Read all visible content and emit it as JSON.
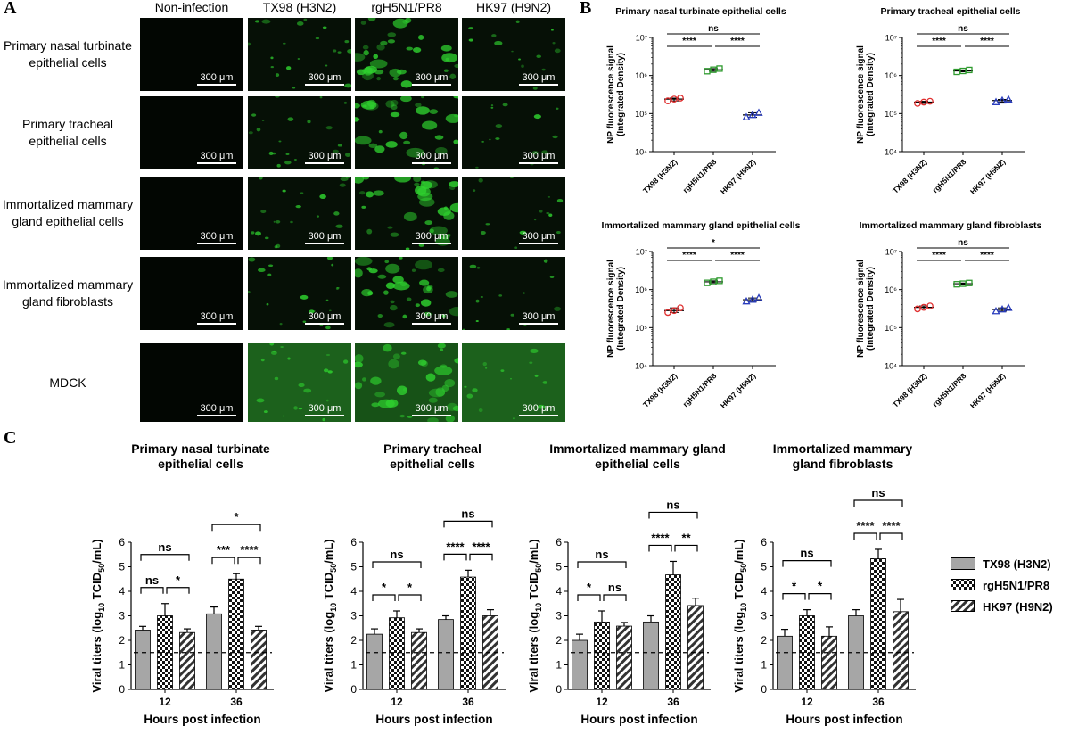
{
  "panels": {
    "a": "A",
    "b": "B",
    "c": "C"
  },
  "panel_a": {
    "columns": [
      "Non-infection",
      "TX98 (H3N2)",
      "rgH5N1/PR8",
      "HK97 (H9N2)"
    ],
    "rows": [
      {
        "label": "Primary nasal turbinate epithelial cells"
      },
      {
        "label": "Primary tracheal epithelial cells"
      },
      {
        "label": "Immortalized mammary gland epithelial cells"
      },
      {
        "label": "Immortalized mammary gland fibroblasts"
      },
      {
        "label": "MDCK"
      }
    ],
    "scale_bar": "300 μm",
    "colors": {
      "fluorescence": "#2fd22f",
      "background": "#061006"
    }
  },
  "chart_data": [
    {
      "type": "scatter",
      "panel": "B",
      "title": "Primary nasal turbinate epithelial cells",
      "categories": [
        "TX98 (H3N2)",
        "rgH5N1/PR8",
        "HK97 (H9N2)"
      ],
      "ylabel": "NP fluorescence signal (Integrated Density)",
      "yscale": "log",
      "ylim": [
        10000,
        10000000
      ],
      "yticks": [
        "10⁴",
        "10⁵",
        "10⁶",
        "10⁷"
      ],
      "series": [
        {
          "category": "TX98 (H3N2)",
          "mean": 240000,
          "points": [
            215000,
            240000,
            255000
          ],
          "marker": "circle",
          "color": "#e03030"
        },
        {
          "category": "rgH5N1/PR8",
          "mean": 1420000,
          "points": [
            1300000,
            1420000,
            1520000
          ],
          "marker": "square",
          "color": "#2e9a2e"
        },
        {
          "category": "HK97 (H9N2)",
          "mean": 92000,
          "points": [
            80000,
            92000,
            105000
          ],
          "marker": "triangle",
          "color": "#2a3dbd"
        }
      ],
      "significance": [
        {
          "from": 0,
          "to": 2,
          "label": "ns"
        },
        {
          "from": 0,
          "to": 1,
          "label": "****"
        },
        {
          "from": 1,
          "to": 2,
          "label": "****"
        }
      ]
    },
    {
      "type": "scatter",
      "panel": "B",
      "title": "Primary tracheal epithelial cells",
      "categories": [
        "TX98 (H3N2)",
        "rgH5N1/PR8",
        "HK97 (H9N2)"
      ],
      "ylabel": "NP fluorescence signal (Integrated Density)",
      "yscale": "log",
      "ylim": [
        10000,
        10000000
      ],
      "yticks": [
        "10⁴",
        "10⁵",
        "10⁶",
        "10⁷"
      ],
      "series": [
        {
          "category": "TX98 (H3N2)",
          "mean": 200000,
          "points": [
            185000,
            200000,
            210000
          ],
          "marker": "circle",
          "color": "#e03030"
        },
        {
          "category": "rgH5N1/PR8",
          "mean": 1320000,
          "points": [
            1250000,
            1320000,
            1400000
          ],
          "marker": "square",
          "color": "#2e9a2e"
        },
        {
          "category": "HK97 (H9N2)",
          "mean": 220000,
          "points": [
            200000,
            220000,
            235000
          ],
          "marker": "triangle",
          "color": "#2a3dbd"
        }
      ],
      "significance": [
        {
          "from": 0,
          "to": 2,
          "label": "ns"
        },
        {
          "from": 0,
          "to": 1,
          "label": "****"
        },
        {
          "from": 1,
          "to": 2,
          "label": "****"
        }
      ]
    },
    {
      "type": "scatter",
      "panel": "B",
      "title": "Immortalized mammary gland epithelial cells",
      "categories": [
        "TX98 (H3N2)",
        "rgH5N1/PR8",
        "HK97 (H9N2)"
      ],
      "ylabel": "NP fluorescence signal (Integrated Density)",
      "yscale": "log",
      "ylim": [
        10000,
        10000000
      ],
      "yticks": [
        "10⁴",
        "10⁵",
        "10⁶",
        "10⁷"
      ],
      "series": [
        {
          "category": "TX98 (H3N2)",
          "mean": 280000,
          "points": [
            250000,
            280000,
            330000
          ],
          "marker": "circle",
          "color": "#e03030"
        },
        {
          "category": "rgH5N1/PR8",
          "mean": 1600000,
          "points": [
            1500000,
            1600000,
            1700000
          ],
          "marker": "square",
          "color": "#2e9a2e"
        },
        {
          "category": "HK97 (H9N2)",
          "mean": 540000,
          "points": [
            490000,
            540000,
            600000
          ],
          "marker": "triangle",
          "color": "#2a3dbd"
        }
      ],
      "significance": [
        {
          "from": 0,
          "to": 2,
          "label": "*"
        },
        {
          "from": 0,
          "to": 1,
          "label": "****"
        },
        {
          "from": 1,
          "to": 2,
          "label": "****"
        }
      ]
    },
    {
      "type": "scatter",
      "panel": "B",
      "title": "Immortalized mammary gland fibroblasts",
      "categories": [
        "TX98 (H3N2)",
        "rgH5N1/PR8",
        "HK97 (H9N2)"
      ],
      "ylabel": "NP fluorescence signal (Integrated Density)",
      "yscale": "log",
      "ylim": [
        10000,
        10000000
      ],
      "yticks": [
        "10⁴",
        "10⁵",
        "10⁶",
        "10⁷"
      ],
      "series": [
        {
          "category": "TX98 (H3N2)",
          "mean": 340000,
          "points": [
            310000,
            340000,
            370000
          ],
          "marker": "circle",
          "color": "#e03030"
        },
        {
          "category": "rgH5N1/PR8",
          "mean": 1430000,
          "points": [
            1380000,
            1430000,
            1490000
          ],
          "marker": "square",
          "color": "#2e9a2e"
        },
        {
          "category": "HK97 (H9N2)",
          "mean": 300000,
          "points": [
            270000,
            300000,
            330000
          ],
          "marker": "triangle",
          "color": "#2a3dbd"
        }
      ],
      "significance": [
        {
          "from": 0,
          "to": 2,
          "label": "ns"
        },
        {
          "from": 0,
          "to": 1,
          "label": "****"
        },
        {
          "from": 1,
          "to": 2,
          "label": "****"
        }
      ]
    },
    {
      "type": "bar",
      "panel": "C",
      "title": "Primary nasal turbinate epithelial cells",
      "categories": [
        "12",
        "36"
      ],
      "xlabel": "Hours post infection",
      "ylabel": "Viral titers (log10 TCID50/mL)",
      "ylim": [
        0,
        6
      ],
      "yticks": [
        "0",
        "1",
        "2",
        "3",
        "4",
        "5",
        "6"
      ],
      "detection_limit": 1.5,
      "series": [
        {
          "name": "TX98 (H3N2)",
          "values": [
            2.42,
            3.08
          ],
          "errors": [
            0.15,
            0.28
          ]
        },
        {
          "name": "rgH5N1/PR8",
          "values": [
            3.0,
            4.5
          ],
          "errors": [
            0.5,
            0.22
          ]
        },
        {
          "name": "HK97 (H9N2)",
          "values": [
            2.32,
            2.42
          ],
          "errors": [
            0.15,
            0.15
          ]
        }
      ],
      "significance": [
        {
          "group": 0,
          "from": 0,
          "to": 2,
          "label": "ns"
        },
        {
          "group": 0,
          "from": 0,
          "to": 1,
          "label": "ns"
        },
        {
          "group": 0,
          "from": 1,
          "to": 2,
          "label": "*"
        },
        {
          "group": 1,
          "from": 0,
          "to": 2,
          "label": "*"
        },
        {
          "group": 1,
          "from": 0,
          "to": 1,
          "label": "***"
        },
        {
          "group": 1,
          "from": 1,
          "to": 2,
          "label": "****"
        }
      ]
    },
    {
      "type": "bar",
      "panel": "C",
      "title": "Primary tracheal epithelial cells",
      "categories": [
        "12",
        "36"
      ],
      "xlabel": "Hours post infection",
      "ylabel": "Viral titers (log10 TCID50/mL)",
      "ylim": [
        0,
        6
      ],
      "yticks": [
        "0",
        "1",
        "2",
        "3",
        "4",
        "5",
        "6"
      ],
      "detection_limit": 1.5,
      "series": [
        {
          "name": "TX98 (H3N2)",
          "values": [
            2.25,
            2.85
          ],
          "errors": [
            0.22,
            0.15
          ]
        },
        {
          "name": "rgH5N1/PR8",
          "values": [
            2.92,
            4.58
          ],
          "errors": [
            0.28,
            0.28
          ]
        },
        {
          "name": "HK97 (H9N2)",
          "values": [
            2.32,
            3.0
          ],
          "errors": [
            0.15,
            0.25
          ]
        }
      ],
      "significance": [
        {
          "group": 0,
          "from": 0,
          "to": 2,
          "label": "ns"
        },
        {
          "group": 0,
          "from": 0,
          "to": 1,
          "label": "*"
        },
        {
          "group": 0,
          "from": 1,
          "to": 2,
          "label": "*"
        },
        {
          "group": 1,
          "from": 0,
          "to": 2,
          "label": "ns"
        },
        {
          "group": 1,
          "from": 0,
          "to": 1,
          "label": "****"
        },
        {
          "group": 1,
          "from": 1,
          "to": 2,
          "label": "****"
        }
      ]
    },
    {
      "type": "bar",
      "panel": "C",
      "title": "Immortalized mammary gland epithelial cells",
      "categories": [
        "12",
        "36"
      ],
      "xlabel": "Hours post infection",
      "ylabel": "Viral titers (log10 TCID50/mL)",
      "ylim": [
        0,
        6
      ],
      "yticks": [
        "0",
        "1",
        "2",
        "3",
        "4",
        "5",
        "6"
      ],
      "detection_limit": 1.5,
      "series": [
        {
          "name": "TX98 (H3N2)",
          "values": [
            2.0,
            2.75
          ],
          "errors": [
            0.25,
            0.25
          ]
        },
        {
          "name": "rgH5N1/PR8",
          "values": [
            2.75,
            4.67
          ],
          "errors": [
            0.45,
            0.55
          ]
        },
        {
          "name": "HK97 (H9N2)",
          "values": [
            2.58,
            3.42
          ],
          "errors": [
            0.15,
            0.3
          ]
        }
      ],
      "significance": [
        {
          "group": 0,
          "from": 0,
          "to": 2,
          "label": "ns"
        },
        {
          "group": 0,
          "from": 0,
          "to": 1,
          "label": "*"
        },
        {
          "group": 0,
          "from": 1,
          "to": 2,
          "label": "ns"
        },
        {
          "group": 1,
          "from": 0,
          "to": 2,
          "label": "ns"
        },
        {
          "group": 1,
          "from": 0,
          "to": 1,
          "label": "****"
        },
        {
          "group": 1,
          "from": 1,
          "to": 2,
          "label": "**"
        }
      ]
    },
    {
      "type": "bar",
      "panel": "C",
      "title": "Immortalized mammary gland fibroblasts",
      "categories": [
        "12",
        "36"
      ],
      "xlabel": "Hours post infection",
      "ylabel": "Viral titers (log10 TCID50/mL)",
      "ylim": [
        0,
        6
      ],
      "yticks": [
        "0",
        "1",
        "2",
        "3",
        "4",
        "5",
        "6"
      ],
      "detection_limit": 1.5,
      "series": [
        {
          "name": "TX98 (H3N2)",
          "values": [
            2.17,
            3.0
          ],
          "errors": [
            0.28,
            0.25
          ]
        },
        {
          "name": "rgH5N1/PR8",
          "values": [
            3.0,
            5.33
          ],
          "errors": [
            0.25,
            0.38
          ]
        },
        {
          "name": "HK97 (H9N2)",
          "values": [
            2.17,
            3.17
          ],
          "errors": [
            0.38,
            0.5
          ]
        }
      ],
      "significance": [
        {
          "group": 0,
          "from": 0,
          "to": 2,
          "label": "ns"
        },
        {
          "group": 0,
          "from": 0,
          "to": 1,
          "label": "*"
        },
        {
          "group": 0,
          "from": 1,
          "to": 2,
          "label": "*"
        },
        {
          "group": 1,
          "from": 0,
          "to": 2,
          "label": "ns"
        },
        {
          "group": 1,
          "from": 0,
          "to": 1,
          "label": "****"
        },
        {
          "group": 1,
          "from": 1,
          "to": 2,
          "label": "****"
        }
      ]
    }
  ],
  "legend": {
    "entries": [
      {
        "label": "TX98 (H3N2)",
        "pattern": "solid-gray"
      },
      {
        "label": "rgH5N1/PR8",
        "pattern": "checkerboard"
      },
      {
        "label": "HK97 (H9N2)",
        "pattern": "diagonal-hatch"
      }
    ]
  }
}
